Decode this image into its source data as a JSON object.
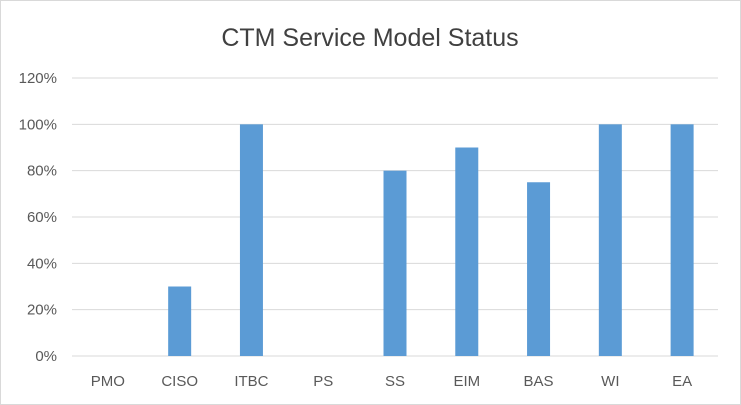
{
  "chart_data": {
    "type": "bar",
    "title": "CTM Service Model Status",
    "xlabel": "",
    "ylabel": "",
    "categories": [
      "PMO",
      "CISO",
      "ITBC",
      "PS",
      "SS",
      "EIM",
      "BAS",
      "WI",
      "EA"
    ],
    "values": [
      0,
      30,
      100,
      0,
      80,
      90,
      75,
      100,
      100
    ],
    "ylim": [
      0,
      120
    ],
    "yticks": [
      "0%",
      "20%",
      "40%",
      "60%",
      "80%",
      "100%",
      "120%"
    ],
    "ytick_values": [
      0,
      20,
      40,
      60,
      80,
      100,
      120
    ],
    "grid": true,
    "legend": "none",
    "bar_color": "#5b9bd5"
  }
}
